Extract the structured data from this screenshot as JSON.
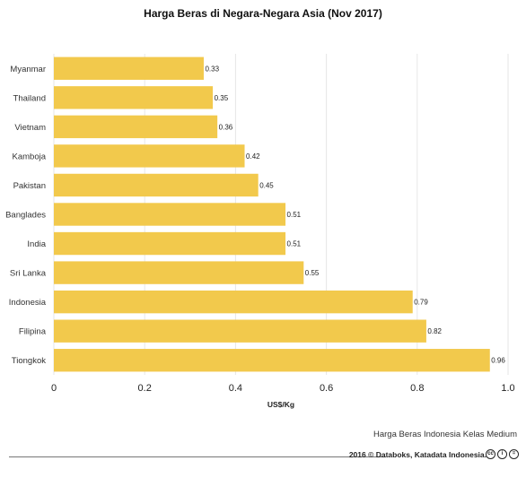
{
  "chart_data": {
    "type": "bar",
    "orientation": "horizontal",
    "title": "Harga Beras di Negara-Negara Asia (Nov 2017)",
    "xlabel": "US$/Kg",
    "ylabel": "",
    "categories": [
      "Myanmar",
      "Thailand",
      "Vietnam",
      "Kamboja",
      "Pakistan",
      "Banglades",
      "India",
      "Sri Lanka",
      "Indonesia",
      "Filipina",
      "Tiongkok"
    ],
    "values": [
      0.33,
      0.35,
      0.36,
      0.42,
      0.45,
      0.51,
      0.51,
      0.55,
      0.79,
      0.82,
      0.96
    ],
    "value_labels": [
      "0.33",
      "0.35",
      "0.36",
      "0.42",
      "0.45",
      "0.51",
      "0.51",
      "0.55",
      "0.79",
      "0.82",
      "0.96"
    ],
    "xlim": [
      0,
      1.0
    ],
    "xticks": [
      0,
      0.2,
      0.4,
      0.6,
      0.8,
      1.0
    ],
    "xtick_labels": [
      "0",
      "0.2",
      "0.4",
      "0.6",
      "0.8",
      "1.0"
    ],
    "grid": true,
    "bar_color": "#F2C94C",
    "legend": "none"
  },
  "note": "Harga Beras Indonesia Kelas Medium",
  "footer": {
    "copyright": "2016 © Databoks, Katadata Indonesia.",
    "license_icons": [
      "cc-icon",
      "by-icon",
      "nd-icon"
    ],
    "license_glyphs": [
      "cc",
      "i",
      "="
    ]
  }
}
